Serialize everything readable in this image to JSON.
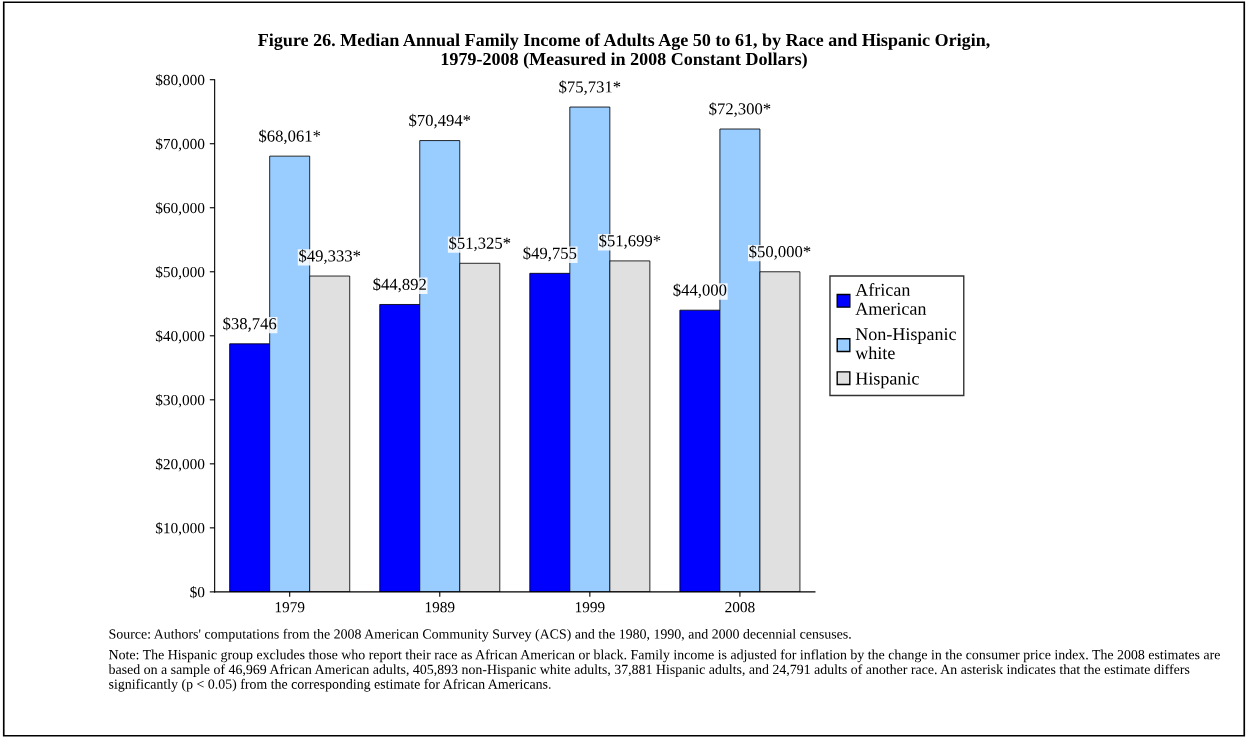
{
  "chart_data": {
    "type": "bar",
    "title": "Figure 26. Median Annual Family Income of Adults Age 50 to 61, by Race and Hispanic Origin,\n1979-2008 (Measured in 2008 Constant Dollars)",
    "categories": [
      "1979",
      "1989",
      "1999",
      "2008"
    ],
    "series": [
      {
        "name": "African\nAmerican",
        "color": "#0000ff",
        "values": [
          38746,
          44892,
          49755,
          44000
        ],
        "value_labels": [
          "$38,746",
          "$44,892",
          "$49,755",
          "$44,000"
        ]
      },
      {
        "name": "Non-Hispanic\nwhite",
        "color": "#99ccff",
        "values": [
          68061,
          70494,
          75731,
          72300
        ],
        "value_labels": [
          "$68,061*",
          "$70,494*",
          "$75,731*",
          "$72,300*"
        ]
      },
      {
        "name": "Hispanic",
        "color": "#e0e0e0",
        "values": [
          49333,
          51325,
          51699,
          50000
        ],
        "value_labels": [
          "$49,333*",
          "$51,325*",
          "$51,699*",
          "$50,000*"
        ]
      }
    ],
    "ylim": [
      0,
      80000
    ],
    "yticks": [
      {
        "value": 0,
        "label": "$0"
      },
      {
        "value": 10000,
        "label": "$10,000"
      },
      {
        "value": 20000,
        "label": "$20,000"
      },
      {
        "value": 30000,
        "label": "$30,000"
      },
      {
        "value": 40000,
        "label": "$40,000"
      },
      {
        "value": 50000,
        "label": "$50,000"
      },
      {
        "value": 60000,
        "label": "$60,000"
      },
      {
        "value": 70000,
        "label": "$70,000"
      },
      {
        "value": 80000,
        "label": "$80,000"
      }
    ],
    "grid": false,
    "legend": "right",
    "annotations": [
      "Source: Authors' computations from the 2008 American Community Survey (ACS) and the 1980, 1990, and 2000 decennial censuses.",
      "Note: The Hispanic group excludes those who report their race as African American or black. Family income is adjusted for inflation by the change in the consumer price index. The 2008 estimates are based on a sample of 46,969 African American adults, 405,893 non-Hispanic white adults, 37,881 Hispanic adults, and 24,791 adults of another race. An asterisk indicates that the estimate differs significantly (p < 0.05) from the corresponding estimate for African Americans."
    ]
  }
}
